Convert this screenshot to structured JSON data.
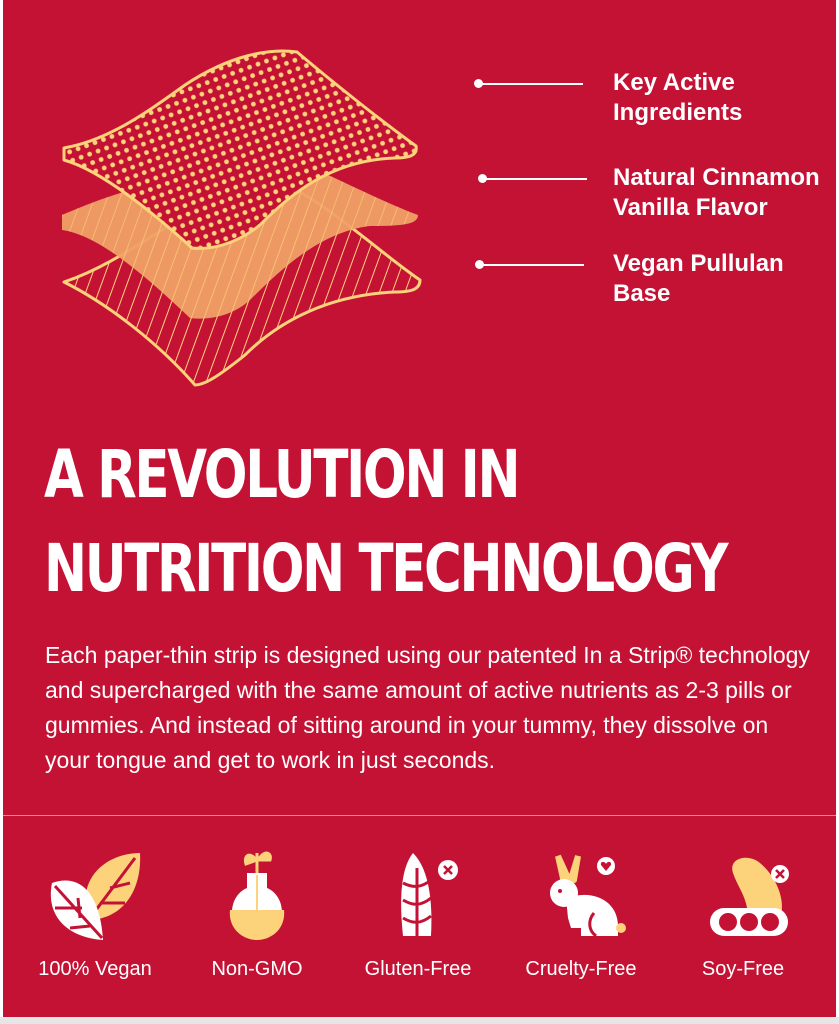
{
  "colors": {
    "background": "#C41235",
    "accent_yellow": "#FCD27A",
    "accent_orange": "#F0A066",
    "text": "#FFFFFF"
  },
  "callouts": [
    {
      "label": "Key Active\nIngredients"
    },
    {
      "label": "Natural Cinnamon\nVanilla Flavor"
    },
    {
      "label": "Vegan Pullulan\nBase"
    }
  ],
  "headline": "A REVOLUTION IN NUTRITION TECHNOLOGY",
  "description": "Each paper-thin strip is designed using our patented In a Strip® technology and supercharged with the same amount of active nutrients as 2-3 pills or gummies. And instead of sitting around in your tummy, they dissolve on your tongue and get to work in just seconds.",
  "badges": [
    {
      "label": "100% Vegan",
      "icon": "leaves-icon"
    },
    {
      "label": "Non-GMO",
      "icon": "flask-sprout-icon"
    },
    {
      "label": "Gluten-Free",
      "icon": "wheat-icon"
    },
    {
      "label": "Cruelty-Free",
      "icon": "rabbit-icon"
    },
    {
      "label": "Soy-Free",
      "icon": "soybean-icon"
    }
  ]
}
